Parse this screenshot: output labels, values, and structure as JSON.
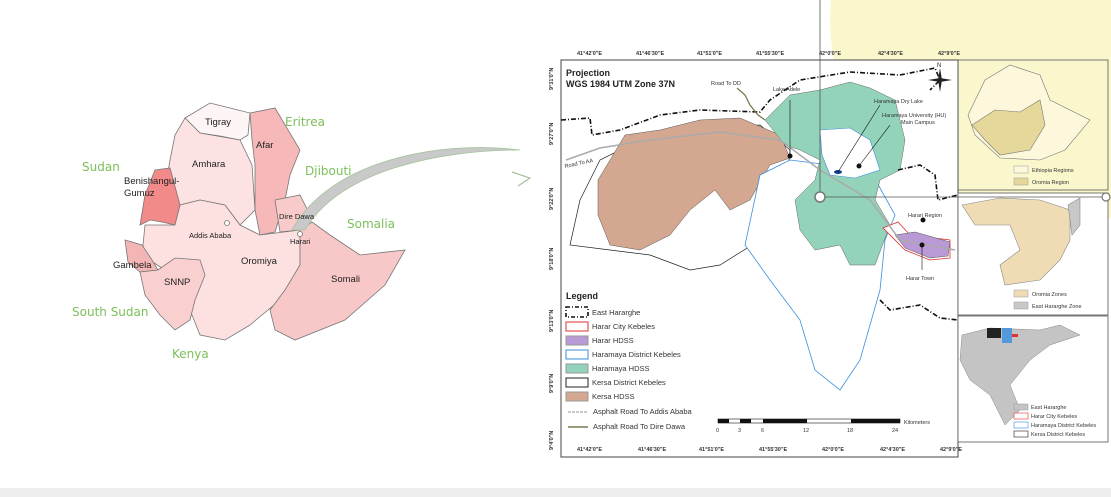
{
  "ethiopia_map": {
    "countries": [
      "Eritrea",
      "Sudan",
      "Djibouti",
      "Somalia",
      "South Sudan",
      "Kenya"
    ],
    "regions": [
      "Tigray",
      "Afar",
      "Amhara",
      "Benishangul-",
      "Gumuz",
      "Addis Ababa",
      "Dire Dawa",
      "Harari",
      "Gambela",
      "SNNP",
      "Oromiya",
      "Somali"
    ]
  },
  "study_map": {
    "projection_title": "Projection",
    "projection": "WGS 1984 UTM Zone 37N",
    "north_label": "N",
    "top_longitudes": [
      "41°42'0\"E",
      "41°46'30\"E",
      "41°51'0\"E",
      "41°55'30\"E",
      "42°0'0\"E",
      "42°4'30\"E",
      "42°9'0\"E"
    ],
    "bottom_longitudes": [
      "41°42'0\"E",
      "41°46'30\"E",
      "41°51'0\"E",
      "41°55'30\"E",
      "42°0'0\"E",
      "42°4'30\"E",
      "42°9'0\"E"
    ],
    "latitudes": [
      "9°31'0\"N",
      "9°27'0\"N",
      "9°22'0\"N",
      "9°18'0\"N",
      "9°13'0\"N",
      "9°9'0\"N",
      "9°4'0\"N"
    ],
    "labels": {
      "road_dd": "Road To DD",
      "road_aa": "Road To AA",
      "lake_adele": "Lake Adele",
      "dry_lake": "Haramaya Dry Lake",
      "hu_1": "Haramaya University (HU)",
      "hu_2": "Main Campus",
      "harari_region": "Harari Region",
      "harar_town": "Harar Town"
    },
    "legend": {
      "title": "Legend",
      "items": [
        {
          "label": "East Hararghe",
          "style": "dashed-black"
        },
        {
          "label": "Harar City Kebeles",
          "color": "#e03030"
        },
        {
          "label": "Harar HDSS",
          "color": "#b99ad6"
        },
        {
          "label": "Haramaya District Kebeles",
          "color": "#3a8ee0"
        },
        {
          "label": "Haramaya HDSS",
          "color": "#93d3b9"
        },
        {
          "label": "Kersa District Kebeles",
          "color": "#222222"
        },
        {
          "label": "Kersa HDSS",
          "color": "#d4a890"
        },
        {
          "label": "Asphalt Road To Addis Ababa",
          "color": "#aaaaaa"
        },
        {
          "label": "Asphalt Road To Dire Dawa",
          "color": "#7a7a50"
        }
      ]
    },
    "scale": {
      "unit": "Kilometers",
      "ticks": [
        "0",
        "3",
        "6",
        "12",
        "18",
        "24"
      ]
    }
  },
  "insets": [
    {
      "legend": [
        "Ethiopia Regions",
        "Oromia Region"
      ]
    },
    {
      "legend": [
        "Oromia Zones",
        "East Hararghe Zone"
      ]
    },
    {
      "legend": [
        "East Hararghe",
        "Harar City Kebeles",
        "Haramaya District Kebeles",
        "Kersa District Kebeles"
      ]
    }
  ],
  "colors": {
    "kersa": "#d4a890",
    "haramaya": "#93d3b9",
    "harar": "#b99ad6",
    "highlight": "#fbf6c8"
  }
}
